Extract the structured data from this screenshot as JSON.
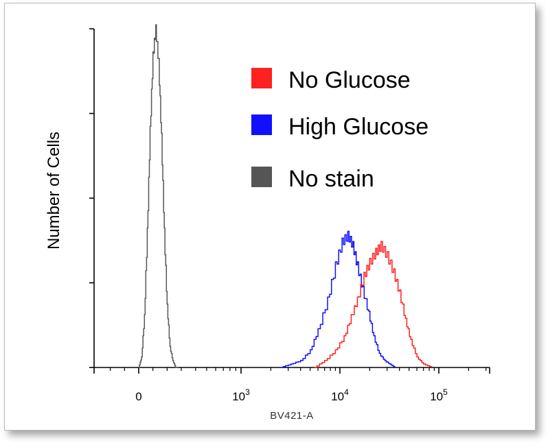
{
  "chart_data": {
    "type": "area",
    "title": "",
    "xlabel": "BV421-A",
    "ylabel": "Number of Cells",
    "x_scale": "biexponential (flow cytometry)",
    "x_tick_labels": [
      {
        "base": "0",
        "exp": ""
      },
      {
        "base": "10",
        "exp": "3"
      },
      {
        "base": "10",
        "exp": "4"
      },
      {
        "base": "10",
        "exp": "5"
      }
    ],
    "x_tick_values": [
      0,
      1000,
      10000,
      100000
    ],
    "ylim": [
      0,
      100
    ],
    "y_major_ticks": [
      0,
      25,
      50,
      75,
      100
    ],
    "grid": false,
    "legend_position": "top-right",
    "series": [
      {
        "name": "No Glucose",
        "color": "#ff2020",
        "x": [
          5500,
          7000,
          9000,
          11000,
          13000,
          15000,
          17500,
          20000,
          23000,
          26000,
          30000,
          35000,
          40000,
          46000,
          52000,
          60000,
          70000,
          85000
        ],
        "y": [
          0,
          2,
          5,
          9,
          15,
          20,
          27,
          31,
          34,
          36,
          33,
          28,
          22,
          14,
          8,
          3,
          1,
          0
        ]
      },
      {
        "name": "High Glucose",
        "color": "#1010ff",
        "x": [
          2500,
          3200,
          4000,
          5000,
          6000,
          7500,
          9000,
          10500,
          12000,
          13500,
          15000,
          17000,
          19500,
          22000,
          25000,
          28500,
          32000,
          36000
        ],
        "y": [
          0,
          1,
          2,
          5,
          11,
          20,
          30,
          37,
          39,
          36,
          30,
          23,
          16,
          9,
          4,
          2,
          1,
          0
        ]
      },
      {
        "name": "No stain",
        "color": "#555555",
        "x": [
          0,
          20,
          40,
          60,
          80,
          100,
          120,
          140,
          160,
          180,
          200,
          220,
          240,
          260,
          280
        ],
        "y": [
          0,
          3,
          15,
          40,
          70,
          92,
          100,
          90,
          68,
          40,
          18,
          6,
          2,
          0,
          0
        ]
      }
    ]
  }
}
